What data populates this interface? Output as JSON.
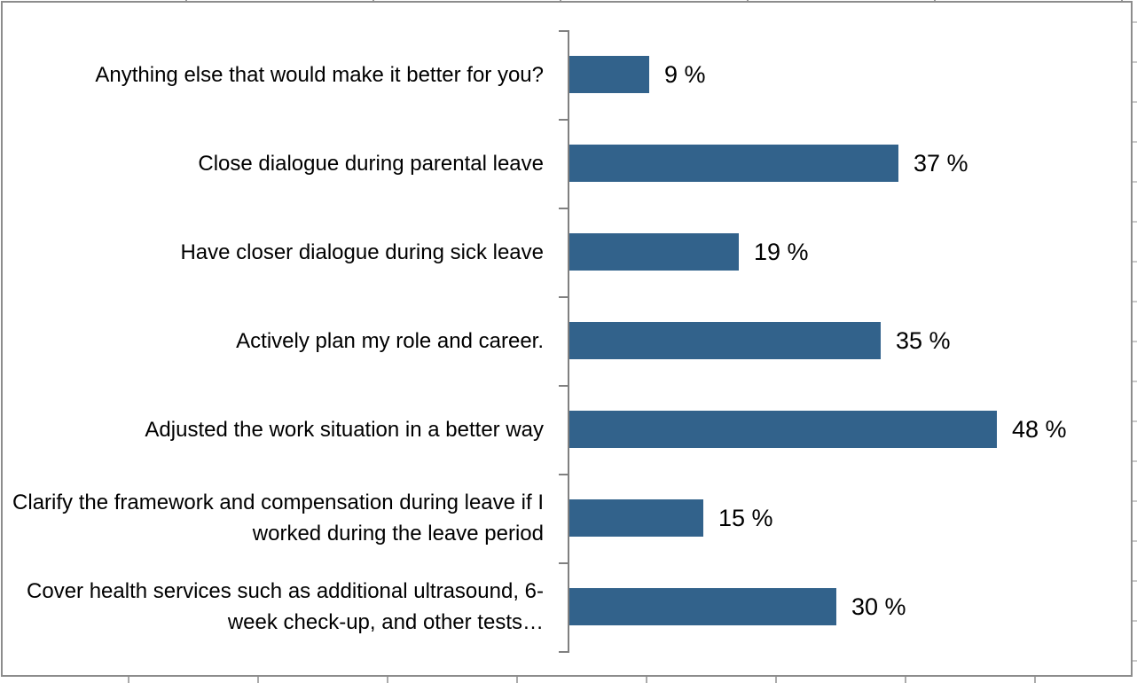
{
  "chart_data": {
    "type": "bar",
    "orientation": "horizontal",
    "title": "",
    "xlabel": "",
    "ylabel": "",
    "legend": null,
    "grid": false,
    "xlim": [
      0,
      62
    ],
    "categories": [
      "Anything else that would make it better for you?",
      "Close dialogue during parental leave",
      "Have closer dialogue during sick leave",
      "Actively plan my role and career.",
      "Adjusted the work situation in a better way",
      "Clarify the framework and compensation during leave if I worked during the leave period",
      "Cover health services such as additional ultrasound, 6-week check-up, and other tests…"
    ],
    "values": [
      9,
      37,
      19,
      35,
      48,
      15,
      30
    ],
    "value_labels": [
      "9 %",
      "37 %",
      "19 %",
      "35 %",
      "48 %",
      "15 %",
      "30 %"
    ],
    "bar_color": "#32628B",
    "axis_color": "#808080",
    "text_color": "#000000"
  },
  "frame": {
    "border_color": "#8c8c8c",
    "background": "#ffffff",
    "gridline_color": "#ababab"
  }
}
